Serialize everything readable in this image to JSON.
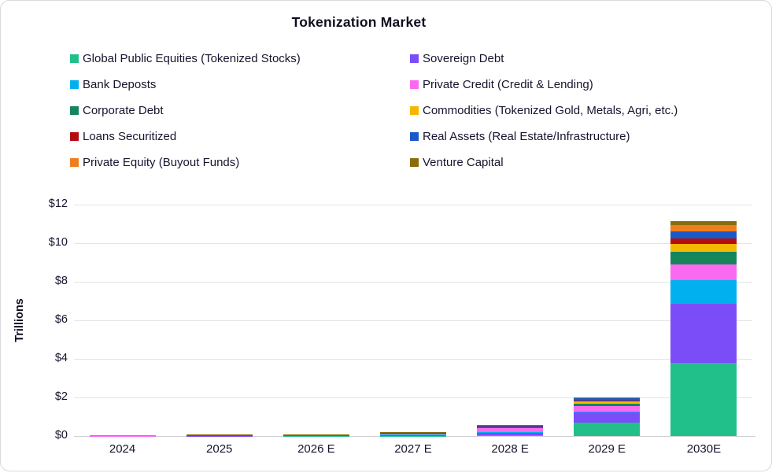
{
  "card": {
    "title": "Tokenization Market"
  },
  "y_axis": {
    "title": "Trillions"
  },
  "legend": {
    "items": [
      {
        "label": "Global Public Equities (Tokenized Stocks)",
        "color": "#21C08B"
      },
      {
        "label": "Sovereign Debt",
        "color": "#7B4DF8"
      },
      {
        "label": "Bank Deposts",
        "color": "#00B0EF"
      },
      {
        "label": "Private Credit (Credit & Lending)",
        "color": "#FA6AF0"
      },
      {
        "label": "Corporate Debt",
        "color": "#16855C"
      },
      {
        "label": "Commodities (Tokenized Gold, Metals, Agri, etc.)",
        "color": "#F5B800"
      },
      {
        "label": "Loans Securitized",
        "color": "#B30D10"
      },
      {
        "label": "Real Assets (Real Estate/Infrastructure)",
        "color": "#1C59C8"
      },
      {
        "label": "Private Equity (Buyout Funds)",
        "color": "#F07D1E"
      },
      {
        "label": "Venture Capital",
        "color": "#8A6D0A"
      }
    ]
  },
  "chart_data": {
    "type": "bar",
    "stacked": true,
    "title": "Tokenization Market",
    "xlabel": "",
    "ylabel": "Trillions",
    "ylim": [
      0,
      12
    ],
    "ytick_labels": [
      "$0",
      "$2",
      "$4",
      "$6",
      "$8",
      "$10",
      "$12"
    ],
    "grid": true,
    "legend_position": "top",
    "categories": [
      "2024",
      "2025",
      "2026 E",
      "2027 E",
      "2028 E",
      "2029 E",
      "2030E"
    ],
    "series": [
      {
        "name": "Global Public Equities (Tokenized Stocks)",
        "color": "#21C08B",
        "values": [
          0.002,
          0.003,
          0.005,
          0.01,
          0.05,
          0.68,
          3.8
        ]
      },
      {
        "name": "Sovereign Debt",
        "color": "#7B4DF8",
        "values": [
          0.005,
          0.01,
          0.02,
          0.05,
          0.15,
          0.56,
          3.05
        ]
      },
      {
        "name": "Bank Deposts",
        "color": "#00B0EF",
        "values": [
          0.001,
          0.002,
          0.002,
          0.005,
          0.01,
          0.02,
          1.25
        ]
      },
      {
        "name": "Private Credit (Credit & Lending)",
        "color": "#FA6AF0",
        "values": [
          0.01,
          0.02,
          0.03,
          0.08,
          0.24,
          0.31,
          0.8
        ]
      },
      {
        "name": "Corporate Debt",
        "color": "#16855C",
        "values": [
          0.002,
          0.003,
          0.005,
          0.01,
          0.02,
          0.12,
          0.65
        ]
      },
      {
        "name": "Commodities (Tokenized Gold, Metals, Agri, etc.)",
        "color": "#F5B800",
        "values": [
          0.005,
          0.008,
          0.01,
          0.015,
          0.03,
          0.14,
          0.4
        ]
      },
      {
        "name": "Loans Securitized",
        "color": "#B30D10",
        "values": [
          0.001,
          0.002,
          0.003,
          0.005,
          0.01,
          0.02,
          0.3
        ]
      },
      {
        "name": "Real Assets (Real Estate/Infrastructure)",
        "color": "#1C59C8",
        "values": [
          0.003,
          0.004,
          0.005,
          0.01,
          0.02,
          0.14,
          0.35
        ]
      },
      {
        "name": "Private Equity (Buyout Funds)",
        "color": "#F07D1E",
        "values": [
          0.008,
          0.013,
          0.015,
          0.01,
          0.03,
          0.02,
          0.35
        ]
      },
      {
        "name": "Venture Capital",
        "color": "#8A6D0A",
        "values": [
          0.003,
          0.005,
          0.005,
          0.005,
          0.01,
          0.01,
          0.2
        ]
      }
    ]
  }
}
